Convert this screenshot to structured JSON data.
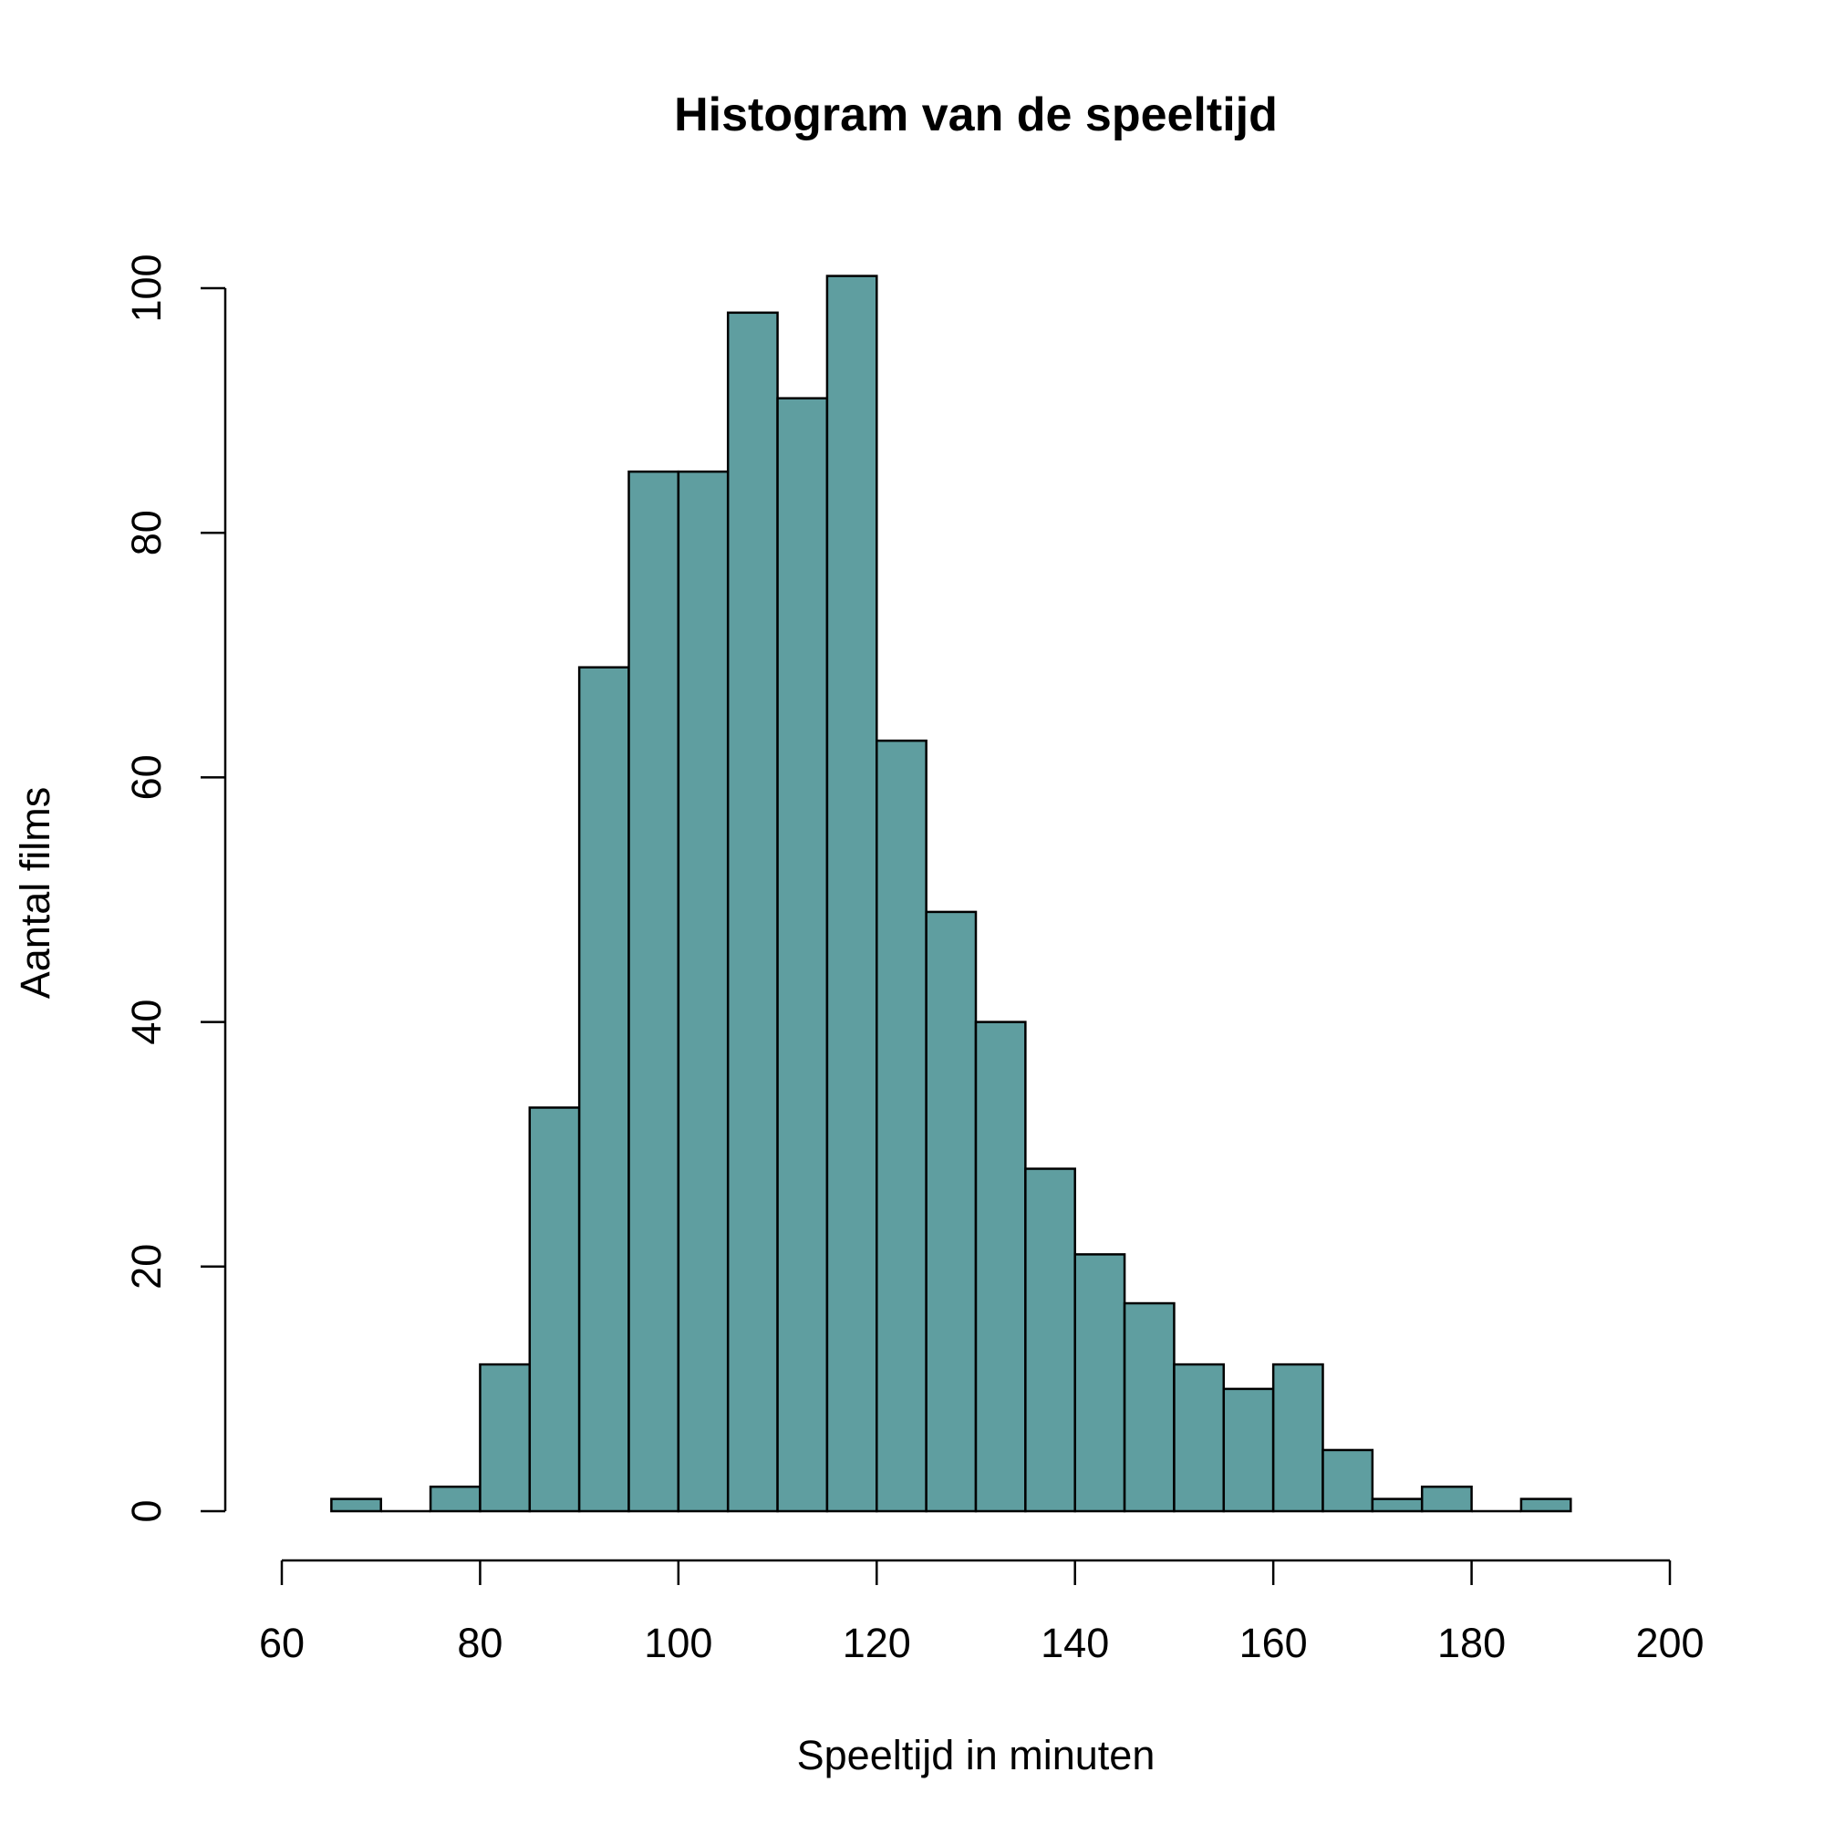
{
  "chart_data": {
    "type": "bar",
    "title": "Histogram van de speeltijd",
    "xlabel": "Speeltijd in minuten",
    "ylabel": "Aantal films",
    "bin_edges": [
      65,
      70,
      75,
      80,
      85,
      90,
      95,
      100,
      105,
      110,
      115,
      120,
      125,
      130,
      135,
      140,
      145,
      150,
      155,
      160,
      165,
      170,
      175,
      180,
      185,
      190
    ],
    "values": [
      1,
      0,
      2,
      12,
      33,
      69,
      85,
      85,
      98,
      91,
      101,
      63,
      49,
      40,
      28,
      21,
      17,
      12,
      10,
      12,
      5,
      1,
      2,
      0,
      1
    ],
    "xlim": [
      60,
      200
    ],
    "ylim": [
      0,
      100
    ],
    "xticks": [
      "60",
      "80",
      "100",
      "120",
      "140",
      "160",
      "180",
      "200"
    ],
    "yticks": [
      "0",
      "20",
      "40",
      "60",
      "80",
      "100"
    ],
    "grid": false,
    "bar_color": "#5F9EA0",
    "edge_color": "#000000"
  }
}
